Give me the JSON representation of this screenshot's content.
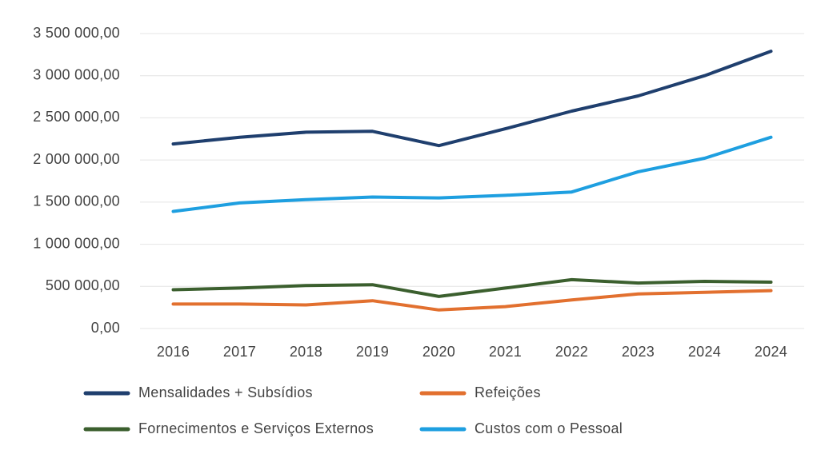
{
  "chart_data": {
    "type": "line",
    "categories": [
      "2016",
      "2017",
      "2018",
      "2019",
      "2020",
      "2021",
      "2022",
      "2023",
      "2024",
      "2024"
    ],
    "series": [
      {
        "name": "Mensalidades + Subsídios",
        "color": "#1f3f6e",
        "values": [
          2190000,
          2270000,
          2330000,
          2340000,
          2170000,
          2370000,
          2580000,
          2760000,
          3000000,
          3290000
        ]
      },
      {
        "name": "Refeições",
        "color": "#e2702f",
        "values": [
          290000,
          290000,
          280000,
          330000,
          220000,
          260000,
          340000,
          410000,
          430000,
          450000
        ]
      },
      {
        "name": "Fornecimentos e Serviços Externos",
        "color": "#3b5f2e",
        "values": [
          460000,
          480000,
          510000,
          520000,
          380000,
          480000,
          580000,
          540000,
          560000,
          550000
        ]
      },
      {
        "name": "Custos com o Pessoal",
        "color": "#1e9fe0",
        "values": [
          1390000,
          1490000,
          1530000,
          1560000,
          1550000,
          1580000,
          1620000,
          1860000,
          2020000,
          2270000
        ]
      }
    ],
    "ylim": [
      0,
      3500000
    ],
    "yticks": [
      {
        "value": 0,
        "label": "0,00"
      },
      {
        "value": 500000,
        "label": "500 000,00"
      },
      {
        "value": 1000000,
        "label": "1 000 000,00"
      },
      {
        "value": 1500000,
        "label": "1 500 000,00"
      },
      {
        "value": 2000000,
        "label": "2 000 000,00"
      },
      {
        "value": 2500000,
        "label": "2 500 000,00"
      },
      {
        "value": 3000000,
        "label": "3 000 000,00"
      },
      {
        "value": 3500000,
        "label": "3 500 000,00"
      }
    ],
    "grid": true,
    "legend": "bottom"
  }
}
